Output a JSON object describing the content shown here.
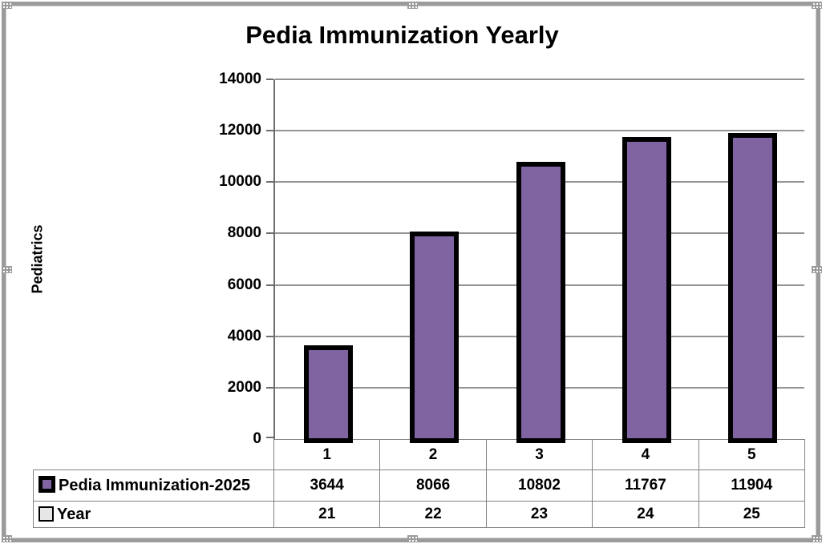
{
  "window": {
    "kind": "spreadsheet embedded chart object",
    "frame_color": "#9B9B9B"
  },
  "chart_data": {
    "type": "bar",
    "title": "Pedia Immunization Yearly",
    "xlabel": "",
    "ylabel": "Pediatrics",
    "categories": [
      "1",
      "2",
      "3",
      "4",
      "5"
    ],
    "series": [
      {
        "name": "Pedia Immunization-2025",
        "values": [
          3644,
          8066,
          10802,
          11767,
          11904
        ],
        "color": "#8064A2",
        "key_border": "#000000",
        "bars_visible": true
      },
      {
        "name": "Year",
        "values": [
          21,
          22,
          23,
          24,
          25
        ],
        "color": "#E6E6E6",
        "key_border": "#000000",
        "bars_visible": false
      }
    ],
    "ylim": [
      0,
      14000
    ],
    "yticks": [
      0,
      2000,
      4000,
      6000,
      8000,
      10000,
      12000,
      14000
    ],
    "grid": true,
    "legend_position": "data-table-left",
    "bar_border_color": "#000000"
  },
  "colors": {
    "bar_fill": "#8064A2",
    "bar_border": "#000000",
    "gridline": "#949494",
    "axis_line": "#6E6E6E",
    "table_border": "#828282",
    "frame_border": "#9B9B9B",
    "background": "#FFFFFF",
    "text": "#000000"
  }
}
